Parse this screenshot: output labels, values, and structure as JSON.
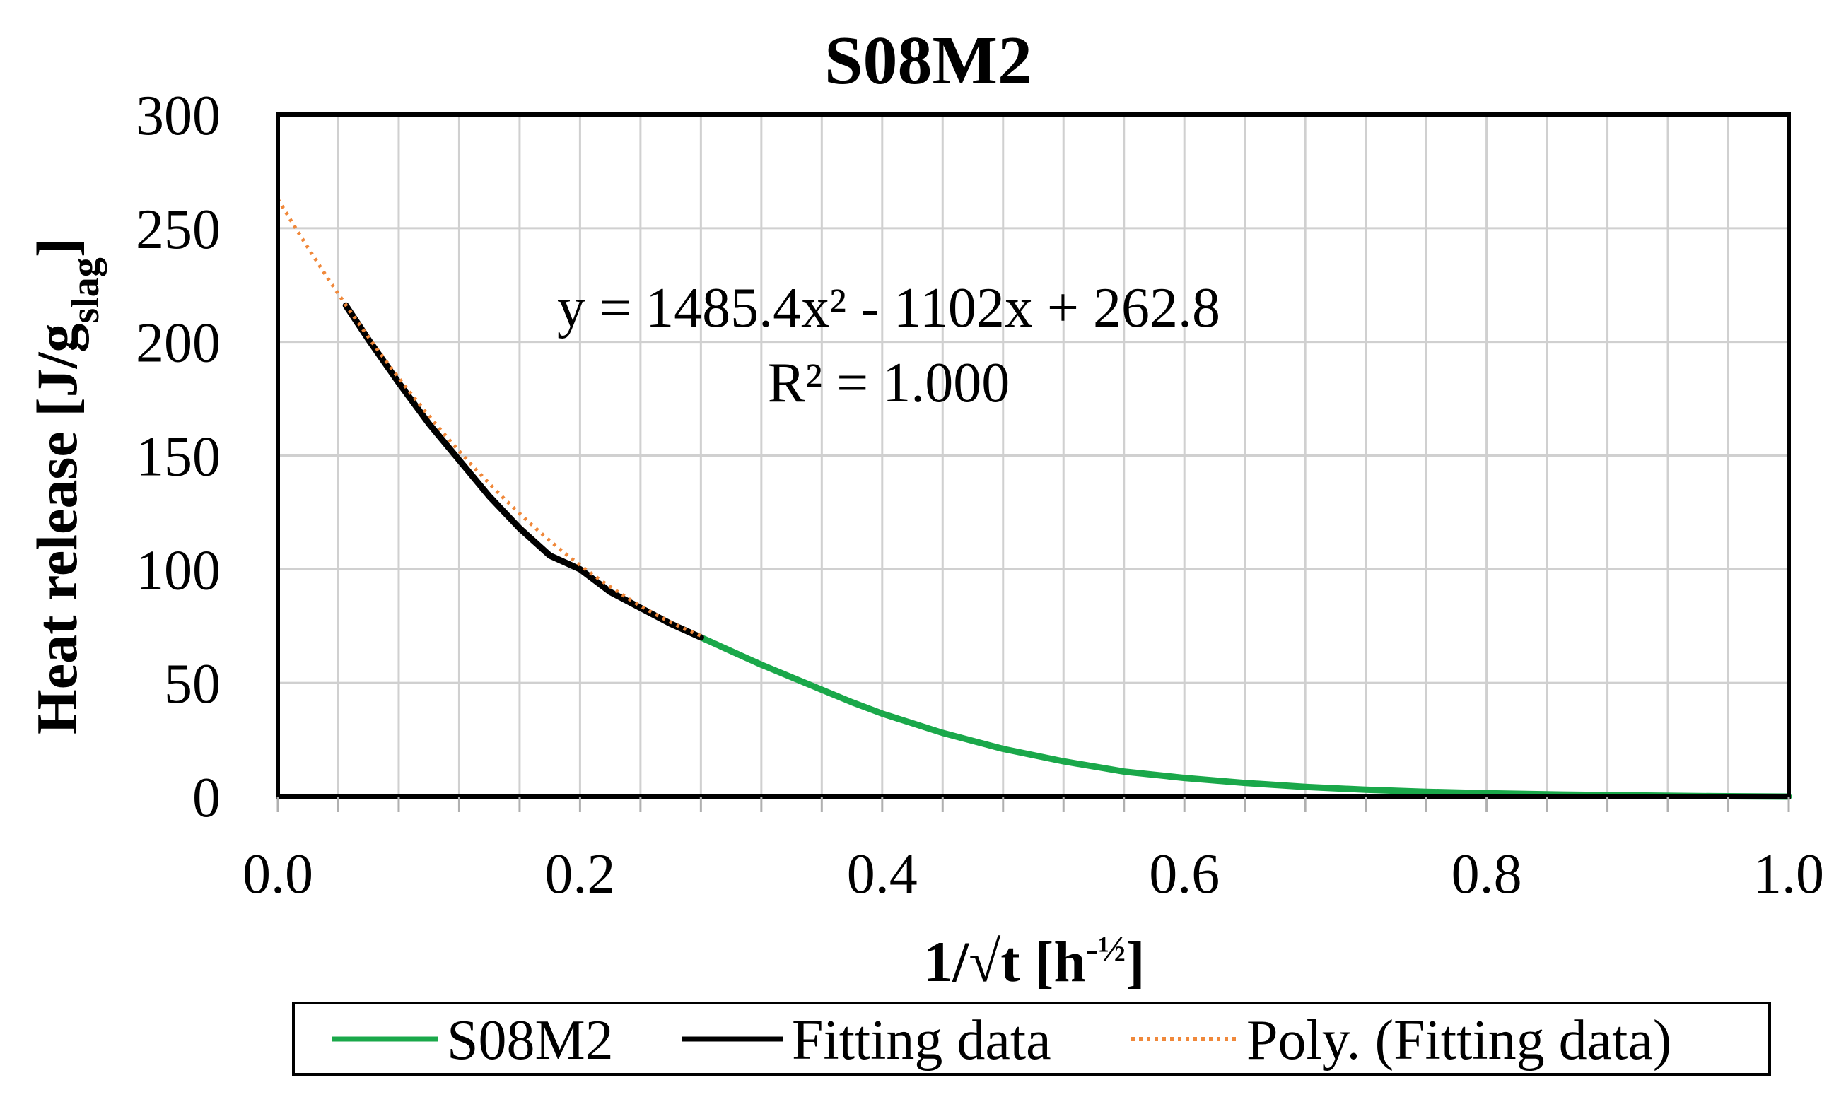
{
  "chart_data": {
    "type": "line",
    "title": "S08M2",
    "xlabel": {
      "main": "1/√t [h",
      "sup": "-½",
      "tail": "]"
    },
    "ylabel": {
      "main": "Heat release [J/g",
      "sub": "slag",
      "tail": "]"
    },
    "xlim": [
      0,
      1
    ],
    "ylim": [
      0,
      300
    ],
    "x_ticks": [
      "0.0",
      "0.2",
      "0.4",
      "0.6",
      "0.8",
      "1.0"
    ],
    "y_ticks": [
      "0",
      "50",
      "100",
      "150",
      "200",
      "250",
      "300"
    ],
    "grid": true,
    "series": [
      {
        "name": "S08M2",
        "color": "#1aa84a",
        "style": "solid",
        "x": [
          0.28,
          0.3,
          0.32,
          0.34,
          0.36,
          0.38,
          0.4,
          0.44,
          0.48,
          0.52,
          0.56,
          0.6,
          0.64,
          0.68,
          0.72,
          0.76,
          0.8,
          0.85,
          0.9,
          0.95,
          1.0
        ],
        "y": [
          70,
          64,
          58,
          52.5,
          47,
          41.5,
          36.5,
          28,
          21,
          15.5,
          11,
          8.2,
          6,
          4.3,
          3,
          2.1,
          1.5,
          0.9,
          0.5,
          0.2,
          0
        ]
      },
      {
        "name": "Fitting data",
        "color": "#000000",
        "style": "solid",
        "x": [
          0.045,
          0.06,
          0.08,
          0.1,
          0.12,
          0.14,
          0.16,
          0.18,
          0.2,
          0.22,
          0.24,
          0.26,
          0.28
        ],
        "y": [
          216,
          201,
          182,
          164,
          148,
          132,
          118,
          106,
          100,
          90,
          83,
          76,
          70
        ]
      },
      {
        "name": "Poly. (Fitting data)",
        "color": "#f0883a",
        "style": "dotted",
        "trendline": {
          "a": 1485.4,
          "b": -1102,
          "c": 262.8,
          "x_range": [
            0,
            0.28
          ]
        }
      }
    ],
    "annotations": {
      "equation": "y = 1485.4x² - 1102x + 262.8",
      "r2": "R² = 1.000"
    },
    "legend_position": "bottom"
  }
}
